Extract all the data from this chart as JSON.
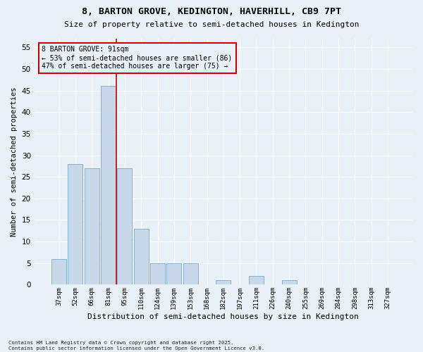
{
  "title1": "8, BARTON GROVE, KEDINGTON, HAVERHILL, CB9 7PT",
  "title2": "Size of property relative to semi-detached houses in Kedington",
  "xlabel": "Distribution of semi-detached houses by size in Kedington",
  "ylabel": "Number of semi-detached properties",
  "categories": [
    "37sqm",
    "52sqm",
    "66sqm",
    "81sqm",
    "95sqm",
    "110sqm",
    "124sqm",
    "139sqm",
    "153sqm",
    "168sqm",
    "182sqm",
    "197sqm",
    "211sqm",
    "226sqm",
    "240sqm",
    "255sqm",
    "269sqm",
    "284sqm",
    "298sqm",
    "313sqm",
    "327sqm"
  ],
  "values": [
    6,
    28,
    27,
    46,
    27,
    13,
    5,
    5,
    5,
    0,
    1,
    0,
    2,
    0,
    1,
    0,
    0,
    0,
    0,
    0,
    0
  ],
  "bar_color": "#c8d8e8",
  "bar_edge_color": "#7aaaca",
  "vline_color": "#cc0000",
  "annotation_box_color": "#cc0000",
  "background_color": "#e8f0f8",
  "grid_color": "#ffffff",
  "footnote": "Contains HM Land Registry data © Crown copyright and database right 2025.\nContains public sector information licensed under the Open Government Licence v3.0.",
  "ylim": [
    0,
    57
  ],
  "yticks": [
    0,
    5,
    10,
    15,
    20,
    25,
    30,
    35,
    40,
    45,
    50,
    55
  ],
  "vline_x": 3.5
}
